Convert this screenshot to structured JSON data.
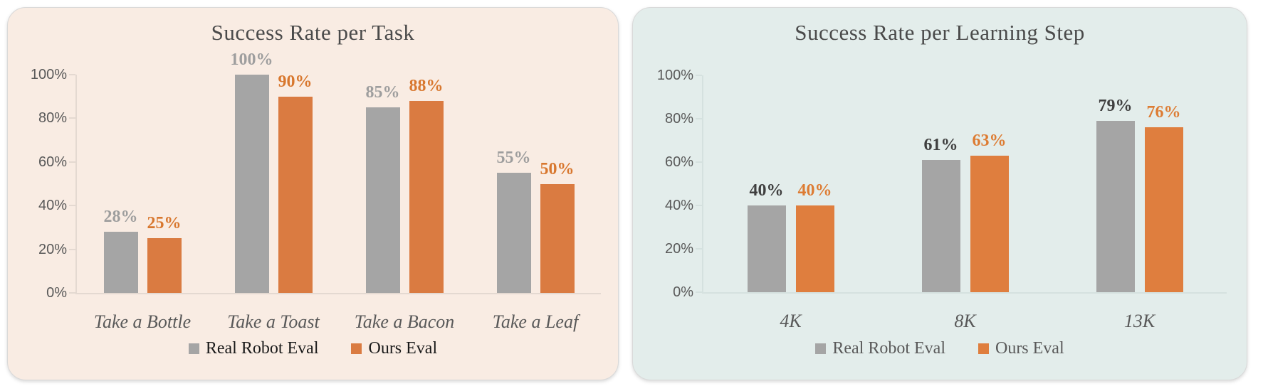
{
  "chart_data": [
    {
      "type": "bar",
      "title": "Success Rate per Task",
      "categories": [
        "Take a Bottle",
        "Take a Toast",
        "Take a Bacon",
        "Take a Leaf"
      ],
      "series": [
        {
          "name": "Real Robot Eval",
          "color": "#A5A5A5",
          "label_color": "#9E9E9E",
          "values": [
            28,
            100,
            85,
            55
          ],
          "value_labels": [
            "28%",
            "100%",
            "85%",
            "55%"
          ]
        },
        {
          "name": "Ours Eval",
          "color": "#DA7B41",
          "label_color": "#D8772E",
          "values": [
            25,
            90,
            88,
            50
          ],
          "value_labels": [
            "25%",
            "90%",
            "88%",
            "50%"
          ]
        }
      ],
      "yticks": [
        "0%",
        "20%",
        "40%",
        "60%",
        "80%",
        "100%"
      ],
      "ylim": [
        0,
        100
      ],
      "grid": false,
      "legend_position": "bottom",
      "panel_bg": "#F9ECE3",
      "axis_color": "#E4D9D1",
      "tick_text_color": "#595959",
      "category_text_color": "#595959",
      "title_color": "#4A4A4A",
      "legend_text_color": "#1A1A1A"
    },
    {
      "type": "bar",
      "title": "Success Rate per Learning Step",
      "categories": [
        "4K",
        "8K",
        "13K"
      ],
      "series": [
        {
          "name": "Real Robot Eval",
          "color": "#A5A5A5",
          "label_color": "#3F3F3F",
          "values": [
            40,
            61,
            79
          ],
          "value_labels": [
            "40%",
            "61%",
            "79%"
          ]
        },
        {
          "name": "Ours Eval",
          "color": "#DF7E3E",
          "label_color": "#DD7C33",
          "values": [
            40,
            63,
            76
          ],
          "value_labels": [
            "40%",
            "63%",
            "76%"
          ]
        }
      ],
      "yticks": [
        "0%",
        "20%",
        "40%",
        "60%",
        "80%",
        "100%"
      ],
      "ylim": [
        0,
        100
      ],
      "grid": false,
      "legend_position": "bottom",
      "panel_bg": "#E3EDEB",
      "axis_color": "#D5E1DF",
      "tick_text_color": "#595959",
      "category_text_color": "#595959",
      "title_color": "#4A4A4A",
      "legend_text_color": "#595959"
    }
  ]
}
